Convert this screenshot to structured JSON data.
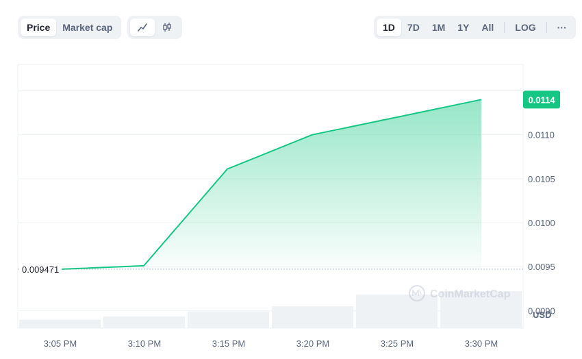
{
  "toolbar": {
    "metric_tabs": [
      {
        "label": "Price",
        "active": true
      },
      {
        "label": "Market cap",
        "active": false
      }
    ],
    "chart_types": [
      {
        "icon": "line-chart-icon",
        "active": true
      },
      {
        "icon": "candlestick-icon",
        "active": false
      }
    ],
    "ranges": [
      {
        "label": "1D",
        "active": true
      },
      {
        "label": "7D",
        "active": false
      },
      {
        "label": "1M",
        "active": false
      },
      {
        "label": "1Y",
        "active": false
      },
      {
        "label": "All",
        "active": false
      }
    ],
    "log_label": "LOG",
    "more_label": "···"
  },
  "watermark": "CoinMarketCap",
  "colors": {
    "line": "#16c784",
    "current_badge": "#16c784",
    "volume_bar": "#eff2f5",
    "grid": "#eff2f5",
    "text": "#58667e"
  },
  "chart_data": {
    "type": "line",
    "x": [
      "3:05 PM",
      "3:10 PM",
      "3:15 PM",
      "3:20 PM",
      "3:25 PM",
      "3:30 PM"
    ],
    "series": [
      {
        "values": [
          0.009471,
          0.00951,
          0.01061,
          0.011,
          0.0112,
          0.0114
        ]
      }
    ],
    "volume": [
      0.5,
      0.7,
      1.0,
      1.3,
      2.0,
      2.2
    ],
    "y_ticks": [
      "0.0110",
      "0.0105",
      "0.0100",
      "0.0095",
      "0.0090"
    ],
    "y_unit": "USD",
    "ylim": [
      0.0088,
      0.0118
    ],
    "open_price_label": "0.009471",
    "current_price_label": "0.0114",
    "grid": true
  }
}
